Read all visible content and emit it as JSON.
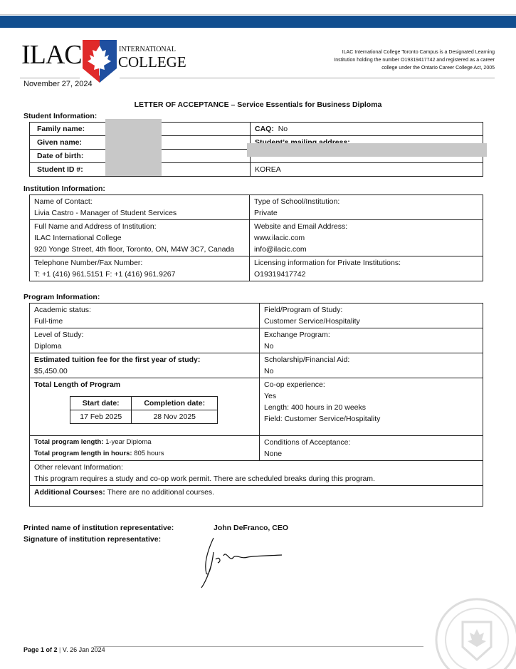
{
  "header": {
    "logo_text": "ILAC INTERNATIONAL COLLEGE",
    "dli_note": "ILAC International College Toronto Campus is a Designated Learning Institution holding the number O19319417742 and registered as a career college under the Ontario Career College Act, 2005",
    "date": "November 27, 2024"
  },
  "title": "LETTER OF ACCEPTANCE – Service Essentials for Business Diploma",
  "student": {
    "heading": "Student Information:",
    "family_label": "Family name:",
    "given_label": "Given name:",
    "dob_label": "Date of birth:",
    "id_label": "Student ID #:",
    "caq_label": "CAQ:",
    "caq_value": "No",
    "mailing_label": "Student’s mailing address:",
    "country": "KOREA"
  },
  "institution": {
    "heading": "Institution Information:",
    "contact_label": "Name of Contact:",
    "contact_value": "Livia Castro - Manager of Student Services",
    "type_label": "Type of School/Institution:",
    "type_value": "Private",
    "name_label": "Full Name and Address of Institution:",
    "name_value": "ILAC International College",
    "address_value": "920 Yonge Street, 4th floor, Toronto, ON, M4W 3C7, Canada",
    "web_label": "Website and Email Address:",
    "web_value": "www.ilacic.com",
    "email_value": "info@ilacic.com",
    "phone_label": "Telephone Number/Fax Number:",
    "phone_value": "T: +1 (416) 961.5151  F: +1 (416) 961.9267",
    "lic_label": "Licensing information for Private Institutions:",
    "lic_value": "O19319417742"
  },
  "program": {
    "heading": "Program Information:",
    "status_label": "Academic status:",
    "status_value": "Full-time",
    "field_label": "Field/Program of Study:",
    "field_value": "Customer Service/Hospitality",
    "level_label": "Level of Study:",
    "level_value": "Diploma",
    "exchange_label": "Exchange Program:",
    "exchange_value": "No",
    "tuition_label": "Estimated tuition fee for the first year of study:",
    "tuition_value": "$5,450.00",
    "scholar_label": "Scholarship/Financial Aid:",
    "scholar_value": "No",
    "length_label": "Total Length of Program",
    "start_label": "Start date:",
    "start_value": "17 Feb 2025",
    "end_label": "Completion date:",
    "end_value": "28 Nov 2025",
    "total_label": "Total program length:",
    "total_value": "1-year Diploma",
    "hours_label": "Total program length in hours:",
    "hours_value": "805 hours",
    "coop_label": "Co-op experience:",
    "coop_value": "Yes",
    "coop_length": "Length: 400 hours in 20 weeks",
    "coop_field": "Field: Customer Service/Hospitality",
    "cond_label": "Conditions of Acceptance:",
    "cond_value": "None",
    "other_label": "Other relevant Information:",
    "other_value": "This program requires a study and co-op work permit.  There are scheduled breaks during this program.",
    "add_label": "Additional Courses:",
    "add_value": "There are no additional courses."
  },
  "signature": {
    "printed_label": "Printed name of institution representative:",
    "sig_label": "Signature of institution representative:",
    "name": "John DeFranco, CEO"
  },
  "footer": {
    "page": "Page 1 of 2",
    "version": "V. 26 Jan 2024"
  },
  "colors": {
    "band": "#114e8f",
    "shield_red": "#e02a2a",
    "shield_blue": "#1f4fa0"
  }
}
